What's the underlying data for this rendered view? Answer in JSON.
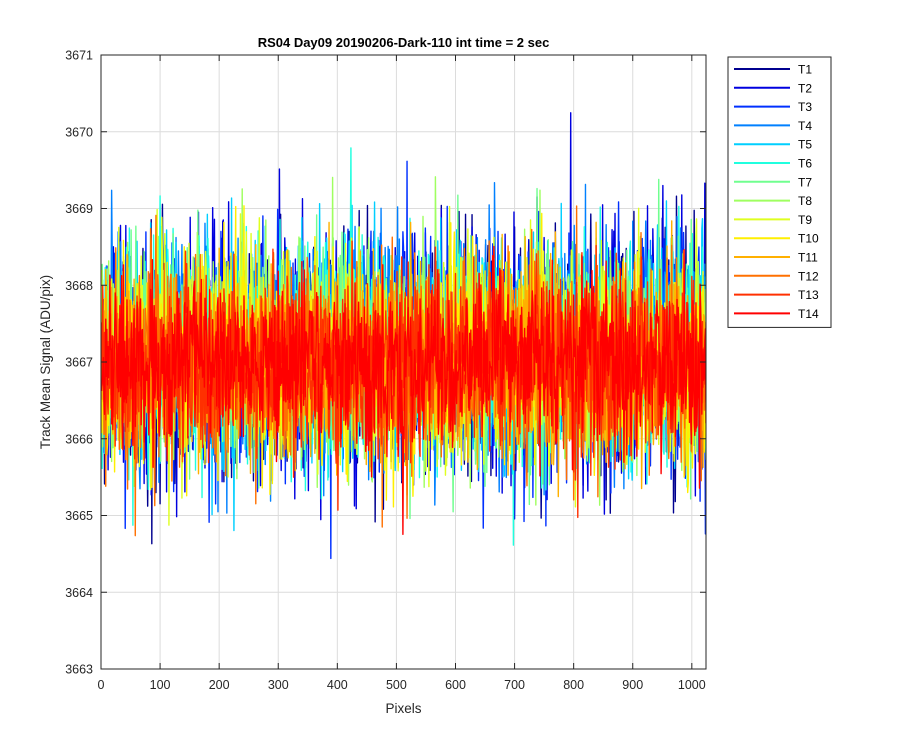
{
  "chart_data": {
    "type": "line",
    "title": "RS04 Day09 20190206-Dark-110 int time = 2 sec",
    "xlabel": "Pixels",
    "ylabel": "Track Mean Signal (ADU/pix)",
    "xlim": [
      0,
      1024
    ],
    "ylim": [
      3663,
      3671
    ],
    "xticks": [
      0,
      100,
      200,
      300,
      400,
      500,
      600,
      700,
      800,
      900,
      1000
    ],
    "yticks": [
      3663,
      3664,
      3665,
      3666,
      3667,
      3668,
      3669,
      3670,
      3671
    ],
    "grid": true,
    "legend_position": "outside-top-right",
    "n_points": 1024,
    "series": [
      {
        "name": "T1",
        "color": "#00008f",
        "mean": 3667.05,
        "std": 1.25
      },
      {
        "name": "T2",
        "color": "#0000df",
        "mean": 3667.1,
        "std": 1.25
      },
      {
        "name": "T3",
        "color": "#0030ff",
        "mean": 3667.1,
        "std": 1.2
      },
      {
        "name": "T4",
        "color": "#0080ff",
        "mean": 3667.15,
        "std": 1.2
      },
      {
        "name": "T5",
        "color": "#00cfff",
        "mean": 3667.15,
        "std": 1.15
      },
      {
        "name": "T6",
        "color": "#20ffdf",
        "mean": 3667.1,
        "std": 1.15
      },
      {
        "name": "T7",
        "color": "#70ff8f",
        "mean": 3667.1,
        "std": 1.1
      },
      {
        "name": "T8",
        "color": "#9fff60",
        "mean": 3667.1,
        "std": 1.1
      },
      {
        "name": "T9",
        "color": "#dfff20",
        "mean": 3667.05,
        "std": 1.05
      },
      {
        "name": "T10",
        "color": "#ffef00",
        "mean": 3667.0,
        "std": 1.05
      },
      {
        "name": "T11",
        "color": "#ffb000",
        "mean": 3667.0,
        "std": 1.0
      },
      {
        "name": "T12",
        "color": "#ff7000",
        "mean": 3667.0,
        "std": 1.0
      },
      {
        "name": "T13",
        "color": "#ff3000",
        "mean": 3667.0,
        "std": 0.95
      },
      {
        "name": "T14",
        "color": "#ff0000",
        "mean": 3667.0,
        "std": 0.9
      }
    ]
  }
}
